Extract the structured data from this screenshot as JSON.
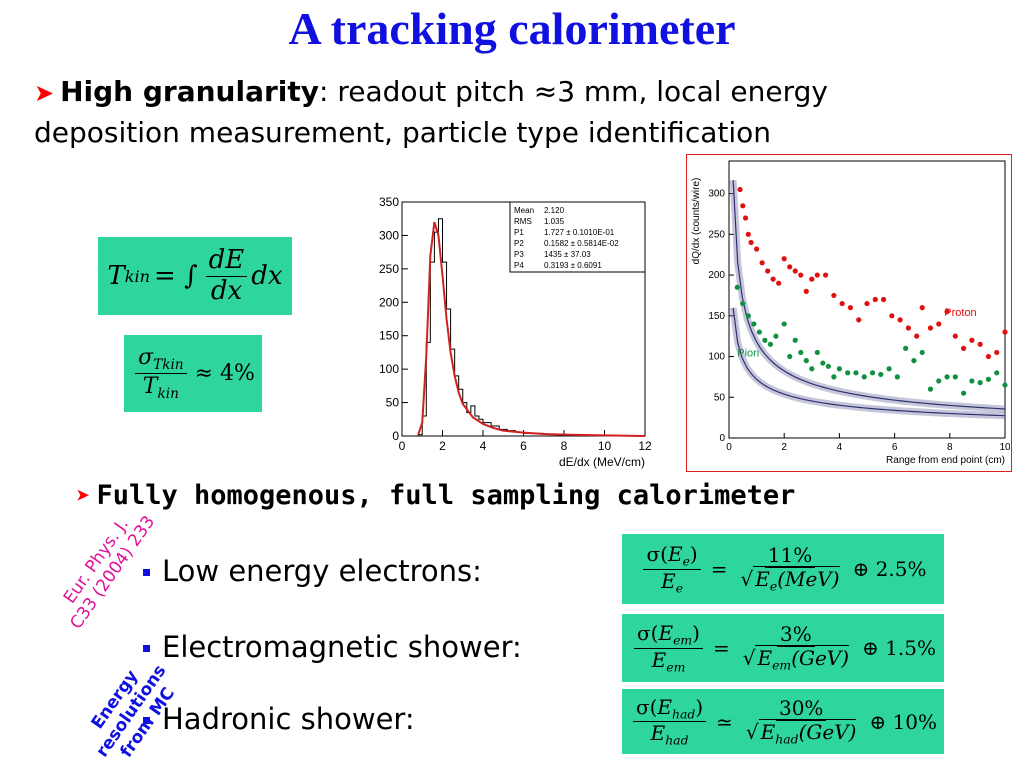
{
  "title": "A tracking calorimeter",
  "bullet1": {
    "bold": "High granularity",
    "line1_rest": ": readout pitch ≈3 mm, local energy",
    "line2": "deposition measurement, particle type identification"
  },
  "eq_tkin": {
    "lhs": "T",
    "lhs_sub": "kin",
    "eq": "= ∫",
    "num": "dE",
    "den": "dx",
    "tail": "dx"
  },
  "eq_sigma": {
    "num": "σ",
    "num_sub": "Tkin",
    "den": "T",
    "den_sub": "kin",
    "rhs": "≈ 4%"
  },
  "colors": {
    "title": "#1010e0",
    "arrow": "#ff0000",
    "formula_bg": "#2fd69b",
    "ref_pink": "#e0109a",
    "ref_blue": "#1010e0",
    "proton": "#e01010",
    "pion": "#109040",
    "fit": "#d02020",
    "band": "#8080b0"
  },
  "chart_data": [
    {
      "type": "line",
      "xlabel": "dE/dx (MeV/cm)",
      "ylabel": "",
      "xlim": [
        0,
        12
      ],
      "ylim": [
        0,
        350
      ],
      "xticks": [
        "0",
        "2",
        "4",
        "6",
        "8",
        "10",
        "12"
      ],
      "yticks": [
        "0",
        "50",
        "100",
        "150",
        "200",
        "250",
        "300",
        "350"
      ],
      "stats": [
        {
          "k": "Mean",
          "v": "2.120"
        },
        {
          "k": "RMS",
          "v": "1.035"
        },
        {
          "k": "P1",
          "v": "1.727 ± 0.1010E-01"
        },
        {
          "k": "P2",
          "v": "0.1582 ± 0.5814E-02"
        },
        {
          "k": "P3",
          "v": "1435 ± 37.03"
        },
        {
          "k": "P4",
          "v": "0.3193 ± 0.6091"
        }
      ],
      "histogram": {
        "x": [
          0.8,
          1.0,
          1.2,
          1.4,
          1.6,
          1.8,
          2.0,
          2.2,
          2.4,
          2.6,
          2.8,
          3.0,
          3.2,
          3.4,
          3.6,
          3.8,
          4.0,
          4.4,
          4.8,
          5.2,
          5.6,
          6.0,
          7.0,
          8.0,
          9.0,
          10.0
        ],
        "y": [
          2,
          30,
          140,
          260,
          305,
          325,
          260,
          190,
          130,
          90,
          70,
          50,
          35,
          45,
          30,
          25,
          20,
          15,
          10,
          8,
          6,
          4,
          3,
          2,
          1,
          0
        ]
      },
      "fit": {
        "x": [
          0.8,
          1.0,
          1.2,
          1.4,
          1.6,
          1.8,
          2.0,
          2.2,
          2.4,
          2.6,
          2.8,
          3.0,
          3.5,
          4.0,
          4.5,
          5.0,
          6.0,
          7.0,
          8.0,
          10.0,
          12.0
        ],
        "y": [
          2,
          20,
          120,
          270,
          320,
          300,
          240,
          175,
          125,
          90,
          65,
          48,
          28,
          18,
          12,
          8,
          5,
          3,
          2,
          1,
          0
        ]
      }
    },
    {
      "type": "scatter",
      "xlabel": "Range from end point (cm)",
      "ylabel": "dQ/dx (counts/wire)",
      "xlim": [
        0,
        10
      ],
      "ylim": [
        0,
        340
      ],
      "xticks": [
        "0",
        "2",
        "4",
        "6",
        "8",
        "10"
      ],
      "yticks": [
        "0",
        "50",
        "100",
        "150",
        "200",
        "250",
        "300"
      ],
      "series": [
        {
          "name": "Proton",
          "points": [
            [
              0.4,
              305
            ],
            [
              0.5,
              285
            ],
            [
              0.6,
              270
            ],
            [
              0.7,
              250
            ],
            [
              0.8,
              240
            ],
            [
              1.0,
              232
            ],
            [
              1.2,
              215
            ],
            [
              1.4,
              205
            ],
            [
              1.6,
              195
            ],
            [
              1.8,
              190
            ],
            [
              2.0,
              220
            ],
            [
              2.2,
              210
            ],
            [
              2.4,
              205
            ],
            [
              2.6,
              200
            ],
            [
              2.8,
              180
            ],
            [
              3.0,
              195
            ],
            [
              3.2,
              200
            ],
            [
              3.5,
              200
            ],
            [
              3.8,
              175
            ],
            [
              4.1,
              165
            ],
            [
              4.4,
              160
            ],
            [
              4.7,
              145
            ],
            [
              5.0,
              165
            ],
            [
              5.3,
              170
            ],
            [
              5.6,
              170
            ],
            [
              5.9,
              150
            ],
            [
              6.2,
              145
            ],
            [
              6.5,
              135
            ],
            [
              6.8,
              125
            ],
            [
              7.0,
              160
            ],
            [
              7.3,
              135
            ],
            [
              7.6,
              140
            ],
            [
              7.9,
              155
            ],
            [
              8.2,
              125
            ],
            [
              8.5,
              110
            ],
            [
              8.8,
              120
            ],
            [
              9.1,
              115
            ],
            [
              9.4,
              100
            ],
            [
              9.7,
              105
            ],
            [
              10.0,
              130
            ]
          ]
        },
        {
          "name": "Pion",
          "points": [
            [
              0.3,
              185
            ],
            [
              0.5,
              165
            ],
            [
              0.7,
              150
            ],
            [
              0.9,
              140
            ],
            [
              1.1,
              130
            ],
            [
              1.3,
              120
            ],
            [
              1.5,
              115
            ],
            [
              1.7,
              125
            ],
            [
              2.0,
              140
            ],
            [
              2.2,
              100
            ],
            [
              2.4,
              120
            ],
            [
              2.6,
              105
            ],
            [
              2.8,
              95
            ],
            [
              3.0,
              85
            ],
            [
              3.2,
              105
            ],
            [
              3.4,
              92
            ],
            [
              3.6,
              88
            ],
            [
              3.8,
              75
            ],
            [
              4.0,
              85
            ],
            [
              4.3,
              80
            ],
            [
              4.6,
              80
            ],
            [
              4.9,
              75
            ],
            [
              5.2,
              80
            ],
            [
              5.5,
              78
            ],
            [
              5.8,
              85
            ],
            [
              6.1,
              75
            ],
            [
              6.4,
              110
            ],
            [
              6.7,
              95
            ],
            [
              7.0,
              105
            ],
            [
              7.3,
              60
            ],
            [
              7.6,
              70
            ],
            [
              7.9,
              75
            ],
            [
              8.2,
              75
            ],
            [
              8.5,
              55
            ],
            [
              8.8,
              70
            ],
            [
              9.1,
              68
            ],
            [
              9.4,
              72
            ],
            [
              9.7,
              80
            ],
            [
              10.0,
              65
            ]
          ]
        }
      ]
    }
  ],
  "bullet2": "Fully homogenous, full sampling calorimeter",
  "items": [
    {
      "label": "Low energy electrons:"
    },
    {
      "label": "Electromagnetic shower:"
    },
    {
      "label": "Hadronic shower:"
    }
  ],
  "res_formulas": [
    {
      "sym": "E",
      "sub": "e",
      "arg": "E",
      "arg_sub": "e",
      "unit": "(MeV)",
      "pct": "11%",
      "op": "=",
      "plus": "⊕ 2.5%"
    },
    {
      "sym": "E",
      "sub": "em",
      "arg": "E",
      "arg_sub": "em",
      "unit": "(GeV)",
      "pct": "3%",
      "op": "=",
      "plus": "⊕ 1.5%"
    },
    {
      "sym": "E",
      "sub": "had",
      "arg": "E",
      "arg_sub": "had",
      "unit": "(GeV)",
      "pct": "30%",
      "op": "≃",
      "plus": "⊕ 10%"
    }
  ],
  "ref_pink": {
    "line1": "Eur. Phys. J.",
    "line2": "C33 (2004) 233"
  },
  "ref_blue": {
    "line1": "Energy",
    "line2": "resolutions",
    "line3": "from MC"
  }
}
